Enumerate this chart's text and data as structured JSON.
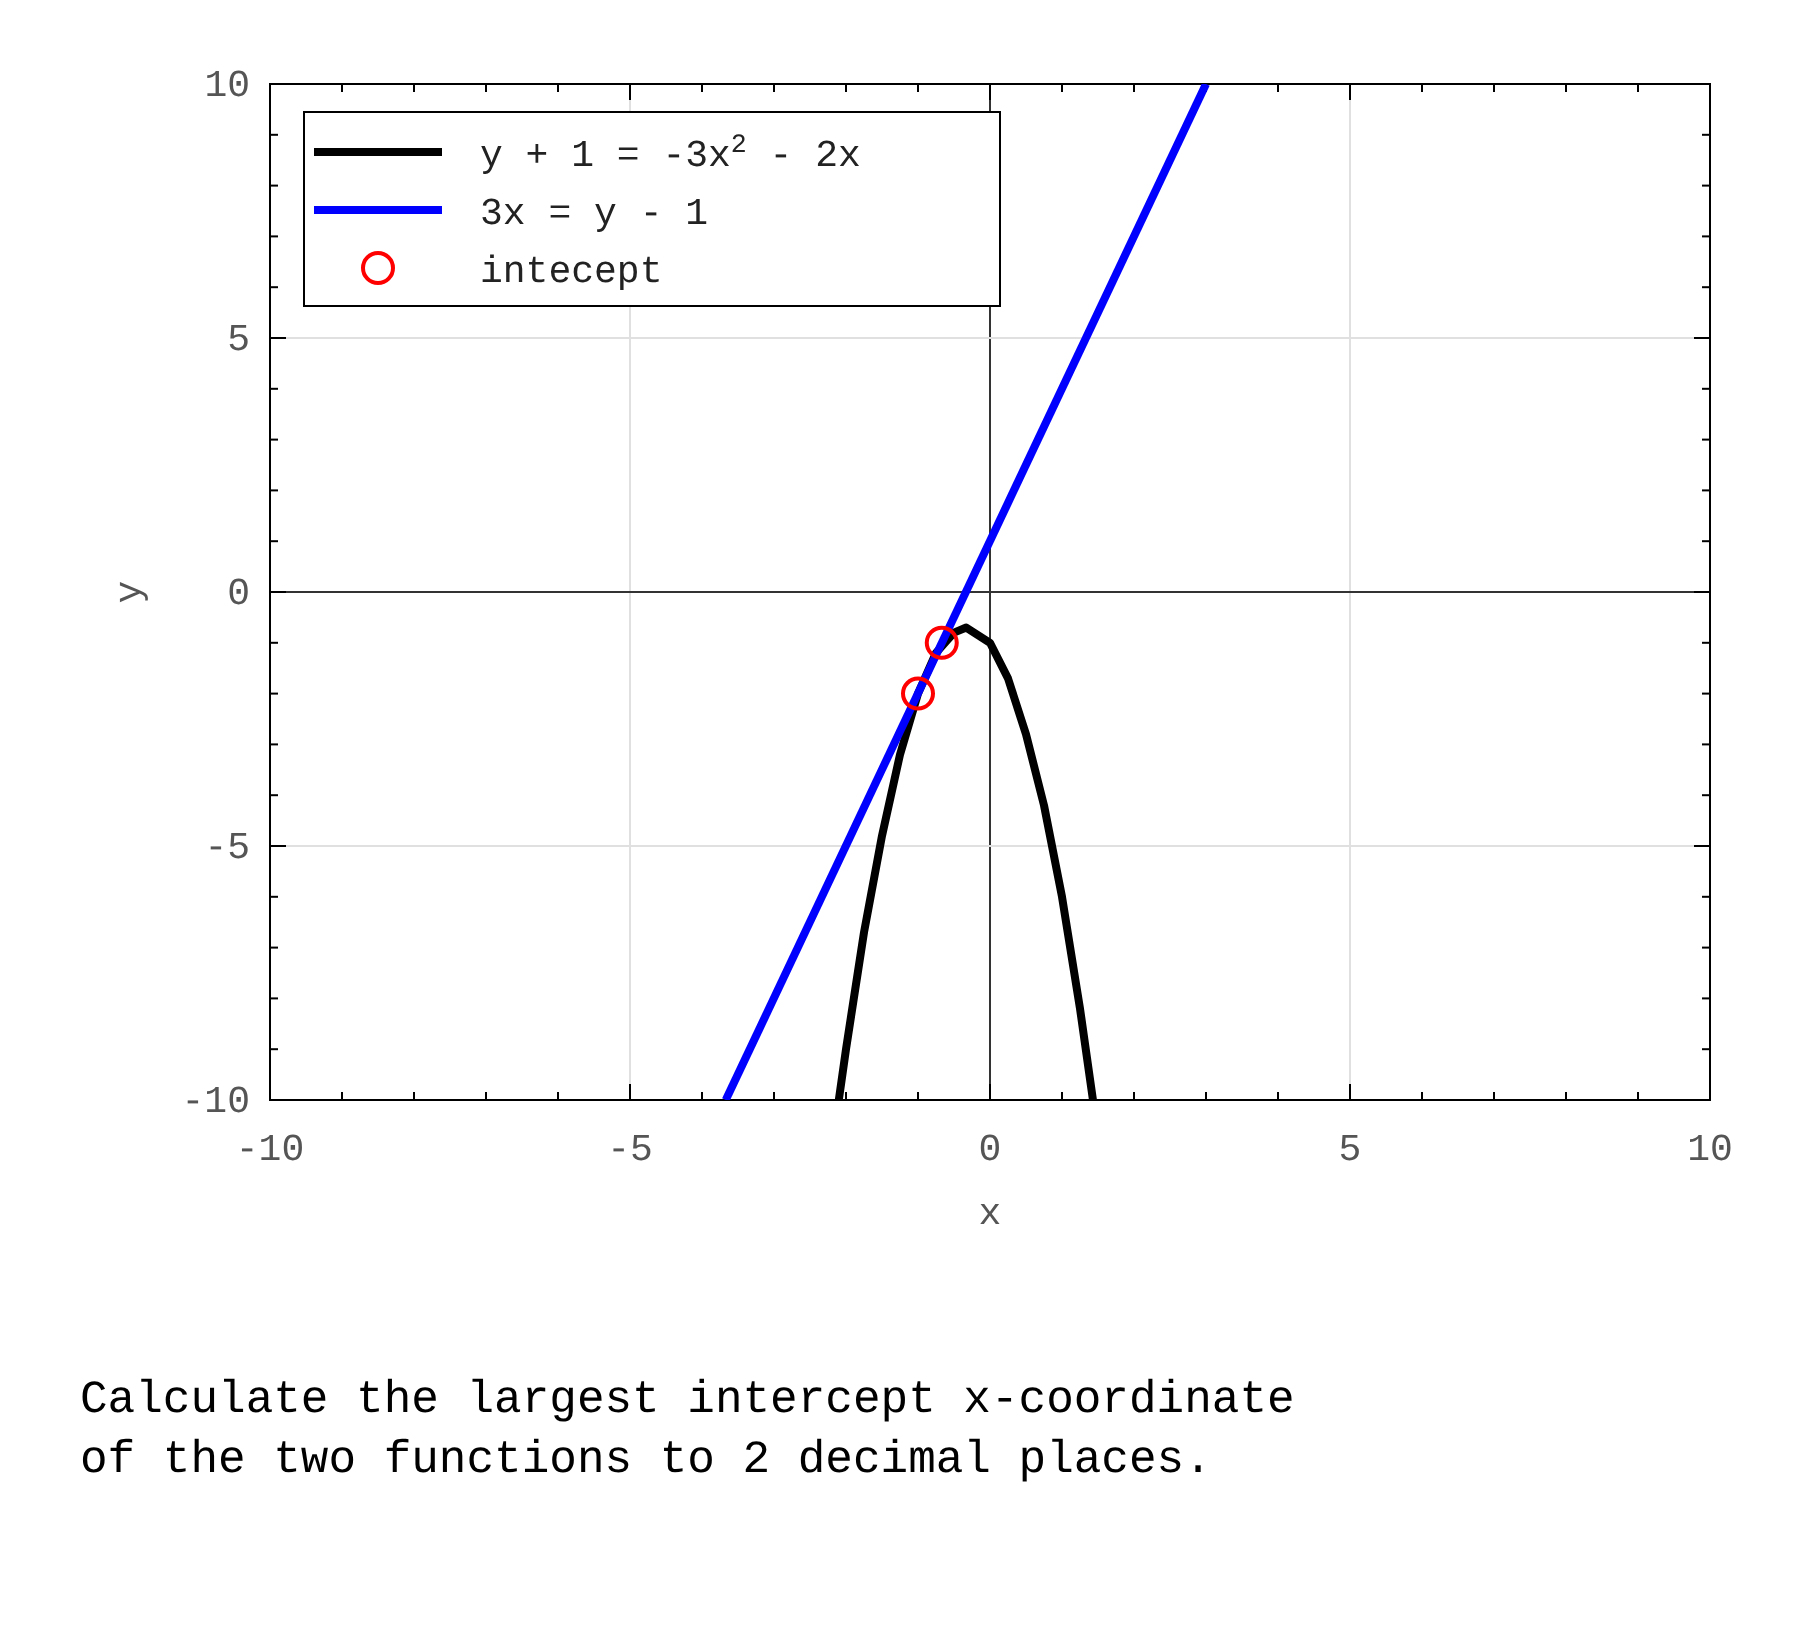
{
  "chart_data": {
    "type": "line",
    "xlabel": "x",
    "ylabel": "y",
    "xlim": [
      -10,
      10
    ],
    "ylim": [
      -10,
      10
    ],
    "xticks": [
      -10,
      {
        "value": -9,
        "label": null
      },
      {
        "value": -8,
        "label": null
      },
      {
        "value": -7,
        "label": null
      },
      {
        "value": -6,
        "label": null
      },
      -5,
      {
        "value": -4,
        "label": null
      },
      {
        "value": -3,
        "label": null
      },
      {
        "value": -2,
        "label": null
      },
      {
        "value": -1,
        "label": null
      },
      0,
      {
        "value": 1,
        "label": null
      },
      {
        "value": 2,
        "label": null
      },
      {
        "value": 3,
        "label": null
      },
      {
        "value": 4,
        "label": null
      },
      5,
      {
        "value": 6,
        "label": null
      },
      {
        "value": 7,
        "label": null
      },
      {
        "value": 8,
        "label": null
      },
      {
        "value": 9,
        "label": null
      },
      10
    ],
    "yticks": [
      -10,
      {
        "value": -9,
        "label": null
      },
      {
        "value": -8,
        "label": null
      },
      {
        "value": -7,
        "label": null
      },
      {
        "value": -6,
        "label": null
      },
      -5,
      {
        "value": -4,
        "label": null
      },
      {
        "value": -3,
        "label": null
      },
      {
        "value": -2,
        "label": null
      },
      {
        "value": -1,
        "label": null
      },
      0,
      {
        "value": 1,
        "label": null
      },
      {
        "value": 2,
        "label": null
      },
      {
        "value": 3,
        "label": null
      },
      {
        "value": 4,
        "label": null
      },
      5,
      {
        "value": 6,
        "label": null
      },
      {
        "value": 7,
        "label": null
      },
      {
        "value": 8,
        "label": null
      },
      {
        "value": 9,
        "label": null
      },
      10
    ],
    "grid": "major",
    "legend": "top left",
    "series": [
      {
        "name": "y + 1 = -3x$^{2}$ - 2x",
        "color": "#000000",
        "x": [
          -2.1,
          -2,
          -1.75,
          -1.5,
          -1.25,
          -1,
          -0.75,
          -0.5,
          -0.33,
          0,
          0.25,
          0.5,
          0.75,
          1,
          1.25,
          1.43
        ],
        "values": [
          -10,
          -9,
          -6.7,
          -4.8,
          -3.2,
          -2,
          -1.2,
          -0.8,
          -0.7,
          -1,
          -1.7,
          -2.8,
          -4.2,
          -6,
          -8.2,
          -10
        ]
      },
      {
        "name": "3x = y - 1",
        "color": "#0000ff",
        "x": [
          -3.67,
          3
        ],
        "values": [
          -10,
          10
        ]
      },
      {
        "name": "intecept",
        "color": "#ff0000",
        "type": "scatter",
        "marker": "circle",
        "x": [
          -1,
          -0.67
        ],
        "values": [
          -2,
          -1
        ]
      }
    ],
    "annotations": [
      "Calculate the largest intercept x-coordinate",
      "of the two functions to 2 decimal places."
    ]
  }
}
